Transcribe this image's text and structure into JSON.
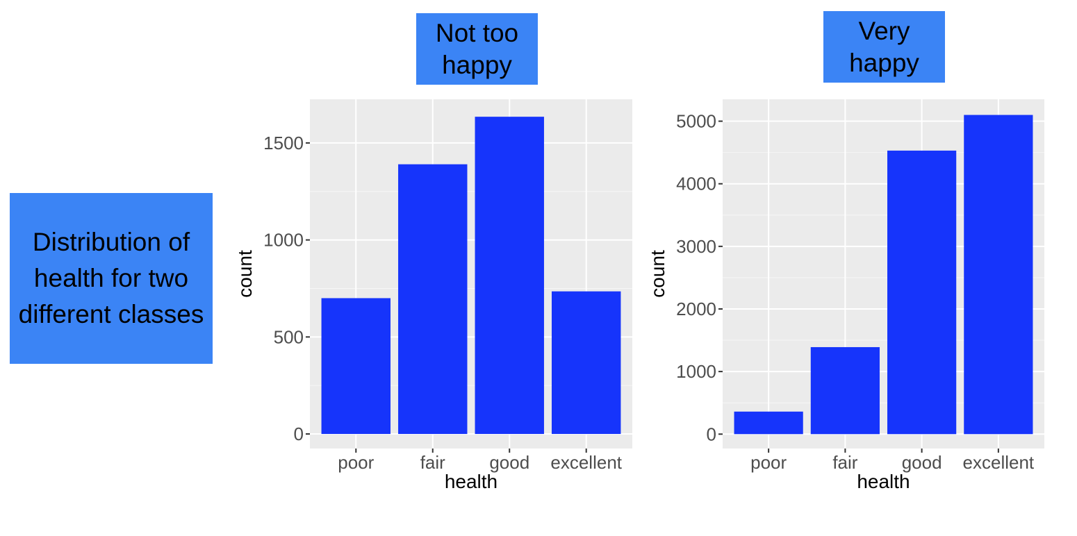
{
  "side_label": "Distribution of health for two different classes",
  "colors": {
    "bar": "#1634fb",
    "panel": "#ebebeb",
    "grid": "#ffffff",
    "label_box": "#3b84f5"
  },
  "chart_data": [
    {
      "type": "bar",
      "title": "Not too happy",
      "xlabel": "health",
      "ylabel": "count",
      "categories": [
        "poor",
        "fair",
        "good",
        "excellent"
      ],
      "values": [
        700,
        1390,
        1635,
        735
      ],
      "ylim": [
        -75,
        1725
      ],
      "yticks": [
        0,
        500,
        1000,
        1500
      ],
      "grid": true
    },
    {
      "type": "bar",
      "title": "Very happy",
      "xlabel": "health",
      "ylabel": "count",
      "categories": [
        "poor",
        "fair",
        "good",
        "excellent"
      ],
      "values": [
        360,
        1390,
        4530,
        5100
      ],
      "ylim": [
        -230,
        5350
      ],
      "yticks": [
        0,
        1000,
        2000,
        3000,
        4000,
        5000
      ],
      "grid": true
    }
  ]
}
